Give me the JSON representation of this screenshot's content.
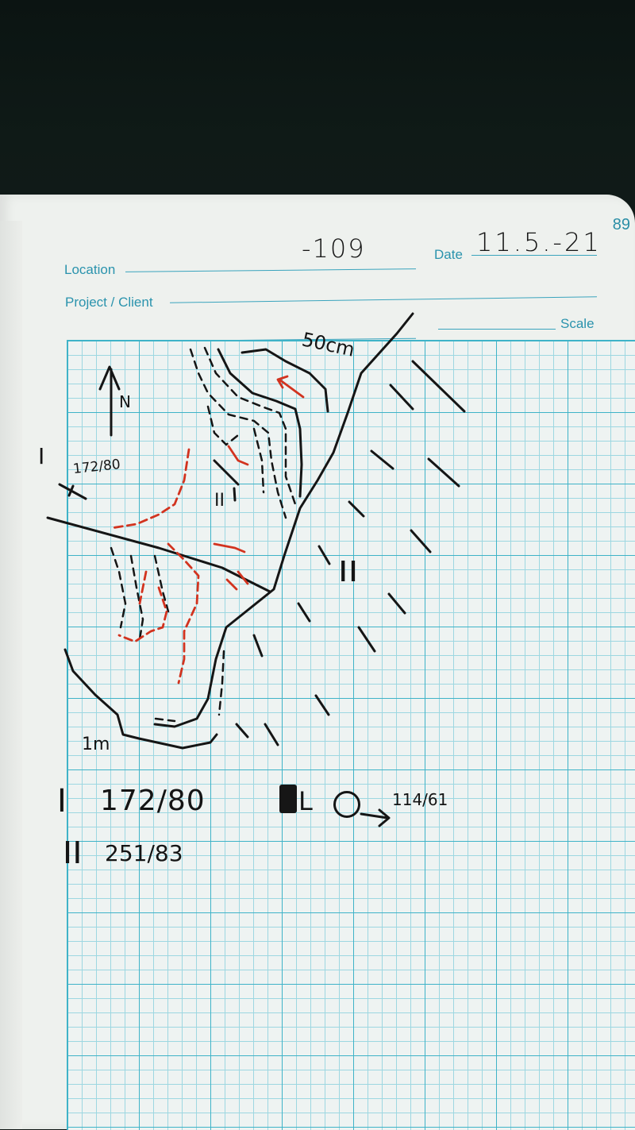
{
  "page": {
    "number": "89"
  },
  "form": {
    "location_label": "Location",
    "location_value": "-109",
    "date_label": "Date",
    "date_value": "11.5.-21",
    "project_label": "Project / Client",
    "scale_label": "Scale"
  },
  "sketch": {
    "north_label": "N",
    "scale_small": "50cm",
    "scale_large": "1m",
    "set_one_marker": "I",
    "set_one_inline": "172/80",
    "set_two_marker_upper": "II",
    "set_two_marker_lower": "II"
  },
  "notes": {
    "set_one_label": "I",
    "set_one_value": "172/80",
    "set_two_label": "II",
    "set_two_value": "251/83",
    "lineation_symbol": "L",
    "lineation_value": "114/61"
  },
  "colors": {
    "ink_black": "#151515",
    "ink_red": "#d2331f",
    "grid_cyan": "#3fb3c8",
    "label_blue": "#2a93ad"
  }
}
